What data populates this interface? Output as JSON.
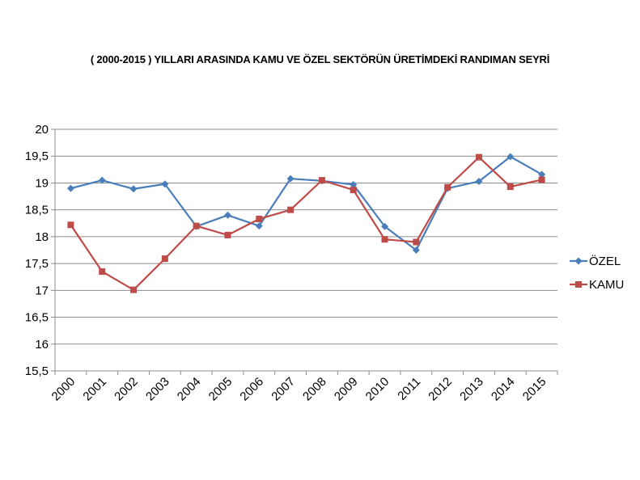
{
  "chart_data": {
    "type": "line",
    "title": "( 2000-2015 ) YILLARI ARASINDA KAMU VE ÖZEL SEKTÖRÜN ÜRETİMDEKİ RANDIMAN SEYRİ",
    "xlabel": "",
    "ylabel": "",
    "categories": [
      "2000",
      "2001",
      "2002",
      "2003",
      "2004",
      "2005",
      "2006",
      "2007",
      "2008",
      "2009",
      "2010",
      "2011",
      "2012",
      "2013",
      "2014",
      "2015"
    ],
    "ylim": [
      15.5,
      20
    ],
    "yticks": [
      "20",
      "19,5",
      "19",
      "18,5",
      "18",
      "17,5",
      "17",
      "16,5",
      "16",
      "15,5"
    ],
    "ytick_values": [
      20,
      19.5,
      19,
      18.5,
      18,
      17.5,
      17,
      16.5,
      16,
      15.5
    ],
    "grid": true,
    "legend_position": "right",
    "series": [
      {
        "name": "ÖZEL",
        "color": "#4a7ebb",
        "marker": "diamond",
        "values": [
          18.9,
          19.05,
          18.89,
          18.98,
          18.19,
          18.4,
          18.2,
          19.08,
          19.04,
          18.97,
          18.19,
          17.75,
          18.9,
          19.03,
          19.49,
          19.16
        ]
      },
      {
        "name": "KAMU",
        "color": "#be4b48",
        "marker": "square",
        "values": [
          18.22,
          17.35,
          17.01,
          17.59,
          18.2,
          18.03,
          18.33,
          18.5,
          19.05,
          18.87,
          17.95,
          17.9,
          18.92,
          19.48,
          18.93,
          19.06
        ]
      }
    ]
  }
}
